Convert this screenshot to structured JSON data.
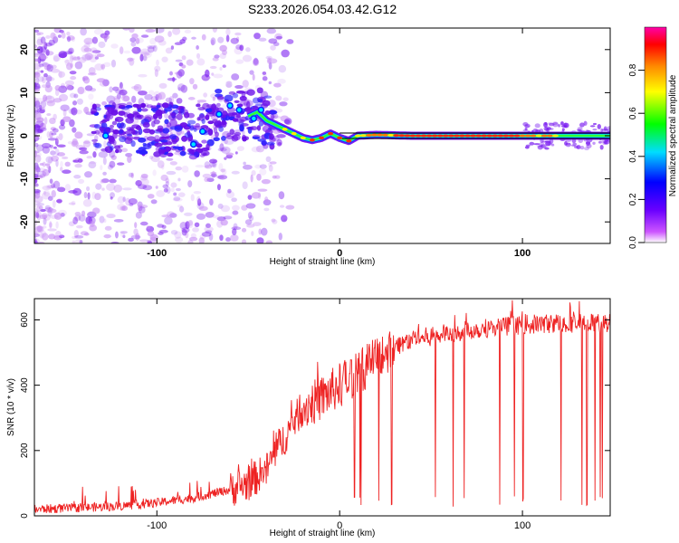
{
  "title": "S233.2026.054.03.42.G12",
  "chart_data": [
    {
      "type": "heatmap",
      "name": "spectrogram",
      "xlabel": "Height of straight line (km)",
      "ylabel": "Frequency (Hz)",
      "xlim": [
        -167,
        148
      ],
      "ylim": [
        -25,
        25
      ],
      "xticks": [
        -100,
        0,
        100
      ],
      "yticks": [
        -20,
        -10,
        0,
        10,
        20
      ],
      "ridge": {
        "x": [
          -50,
          -45,
          -40,
          -35,
          -30,
          -25,
          -20,
          -15,
          -10,
          -5,
          0,
          5,
          10,
          20,
          40,
          60,
          80,
          100,
          120,
          148
        ],
        "freq": [
          4.5,
          5.5,
          3.5,
          2.5,
          1.5,
          0.5,
          -0.5,
          -1.0,
          -0.5,
          0.5,
          -0.5,
          -1.2,
          0.0,
          0.2,
          0.0,
          0.0,
          0.0,
          0.0,
          0.0,
          0.0
        ]
      },
      "colorbar": {
        "label": "Normalized spectral amplitude",
        "range": [
          0,
          1
        ],
        "ticks": [
          0.0,
          0.2,
          0.4,
          0.6,
          0.8
        ],
        "tick_labels": [
          "0.0",
          "0.2",
          "0.4",
          "0.6",
          "0.8"
        ]
      }
    },
    {
      "type": "line",
      "name": "snr",
      "xlabel": "Height of straight line (km)",
      "ylabel": "SNR (10 * v/v)",
      "xlim": [
        -167,
        148
      ],
      "ylim": [
        0,
        665
      ],
      "xticks": [
        -100,
        0,
        100
      ],
      "yticks": [
        0,
        200,
        400,
        600
      ],
      "color": "#ee2222",
      "trend": {
        "x": [
          -167,
          -140,
          -120,
          -100,
          -80,
          -60,
          -50,
          -40,
          -35,
          -30,
          -25,
          -20,
          -10,
          0,
          10,
          20,
          30,
          40,
          60,
          80,
          100,
          120,
          148
        ],
        "snr": [
          20,
          25,
          30,
          40,
          55,
          80,
          100,
          140,
          200,
          240,
          290,
          330,
          360,
          400,
          440,
          480,
          520,
          540,
          560,
          575,
          585,
          590,
          590
        ]
      }
    }
  ]
}
